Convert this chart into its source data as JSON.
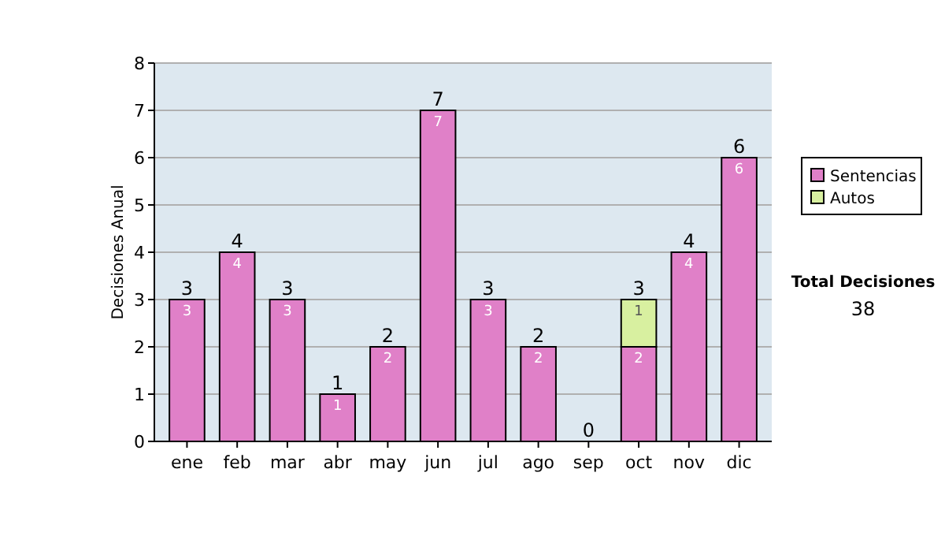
{
  "chart_data": {
    "type": "bar",
    "stacked": true,
    "ylabel": "Decisiones Anual",
    "categories": [
      "ene",
      "feb",
      "mar",
      "abr",
      "may",
      "jun",
      "jul",
      "ago",
      "sep",
      "oct",
      "nov",
      "dic"
    ],
    "series": [
      {
        "name": "Sentencias",
        "color": "#e080c8",
        "values": [
          3,
          4,
          3,
          1,
          2,
          7,
          3,
          2,
          0,
          2,
          4,
          6
        ],
        "value_labels": [
          "3",
          "4",
          "3",
          "1",
          "2",
          "7",
          "3",
          "2",
          null,
          "2",
          "4",
          "6"
        ]
      },
      {
        "name": "Autos",
        "color": "#d8f0a0",
        "values": [
          0,
          0,
          0,
          0,
          0,
          0,
          0,
          0,
          0,
          1,
          0,
          0
        ],
        "value_labels": [
          null,
          null,
          null,
          null,
          null,
          null,
          null,
          null,
          null,
          "1",
          null,
          null
        ]
      }
    ],
    "totals": [
      "3",
      "4",
      "3",
      "1",
      "2",
      "7",
      "3",
      "2",
      "0",
      "3",
      "4",
      "6"
    ],
    "ylim": [
      0,
      8
    ],
    "yticks": [
      0,
      1,
      2,
      3,
      4,
      5,
      6,
      7,
      8
    ],
    "grid": "y",
    "legend": "right",
    "annotations": [
      "Total Decisiones",
      "38"
    ]
  }
}
